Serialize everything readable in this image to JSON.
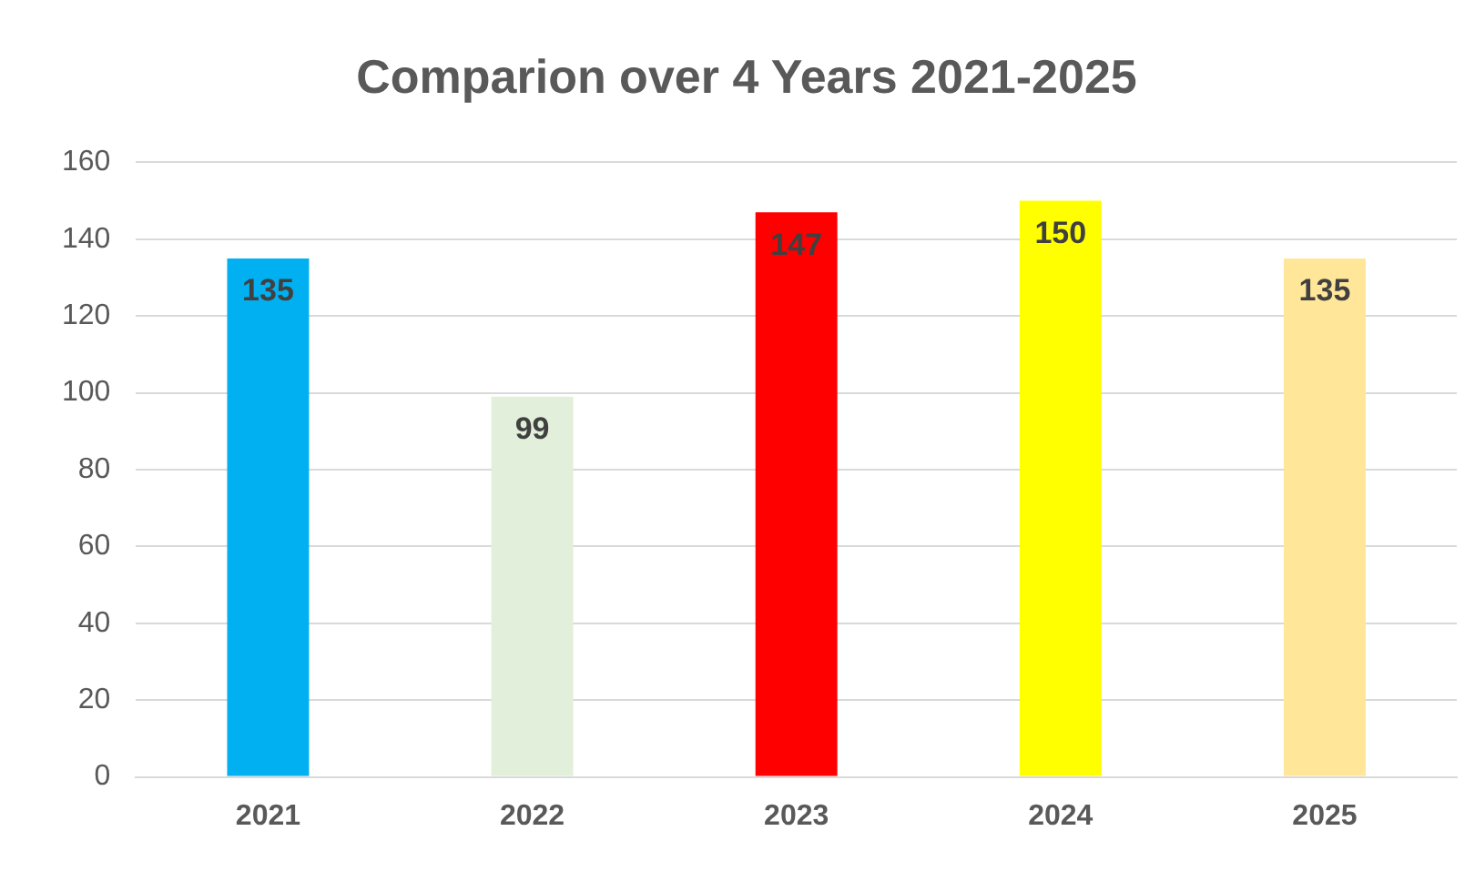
{
  "chart_data": {
    "type": "bar",
    "title": "Comparion over 4 Years 2021-2025",
    "categories": [
      "2021",
      "2022",
      "2023",
      "2024",
      "2025"
    ],
    "values": [
      135,
      99,
      147,
      150,
      135
    ],
    "colors": [
      "#00b0f0",
      "#e2efda",
      "#ff0000",
      "#ffff00",
      "#ffe699"
    ],
    "ylim": [
      0,
      160
    ],
    "yticks": [
      0,
      20,
      40,
      60,
      80,
      100,
      120,
      140,
      160
    ],
    "grid": "y",
    "legend": false,
    "data_labels": true
  }
}
